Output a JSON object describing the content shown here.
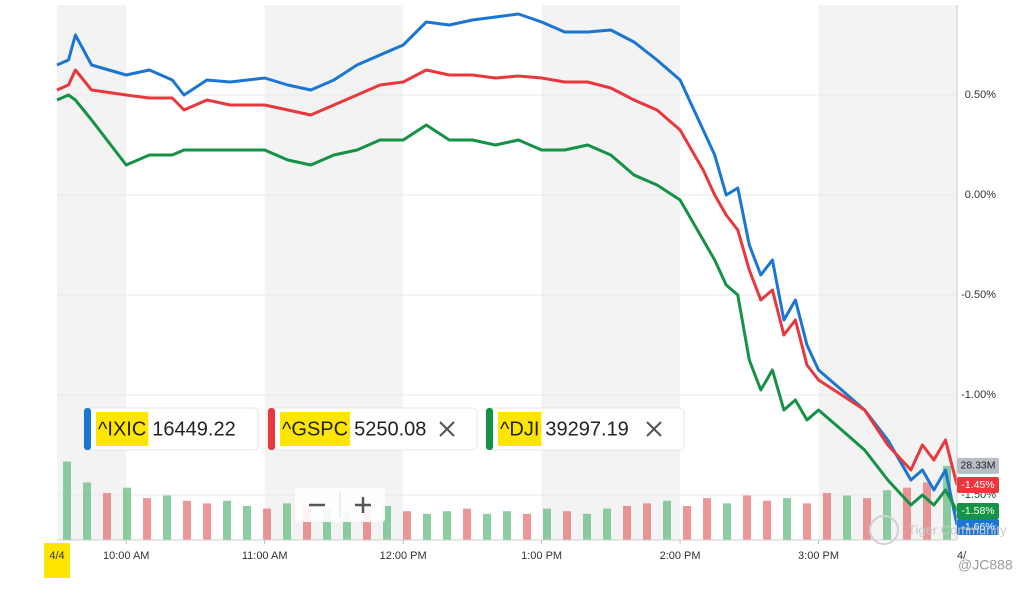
{
  "chart_data": {
    "type": "line",
    "x": [
      9.5,
      9.583,
      9.633,
      9.75,
      10,
      10.167,
      10.333,
      10.417,
      10.583,
      10.75,
      11,
      11.167,
      11.333,
      11.5,
      11.667,
      11.833,
      12,
      12.167,
      12.333,
      12.5,
      12.667,
      12.833,
      13,
      13.167,
      13.333,
      13.5,
      13.667,
      13.833,
      14,
      14.167,
      14.25,
      14.333,
      14.417,
      14.5,
      14.583,
      14.667,
      14.75,
      14.833,
      14.917,
      15,
      15.167,
      15.333,
      15.5,
      15.667,
      15.75,
      15.833,
      15.917,
      16
    ],
    "xlim": [
      9.5,
      16
    ],
    "xticks": [
      {
        "value": 10,
        "label": "10:00 AM"
      },
      {
        "value": 11,
        "label": "11:00 AM"
      },
      {
        "value": 12,
        "label": "12:00 PM"
      },
      {
        "value": 13,
        "label": "1:00 PM"
      },
      {
        "value": 14,
        "label": "2:00 PM"
      },
      {
        "value": 15,
        "label": "3:00 PM"
      }
    ],
    "ylim": [
      -1.725,
      0.95
    ],
    "yticks": [
      {
        "value": 0.5,
        "label": "0.50%"
      },
      {
        "value": 0,
        "label": "0.00%"
      },
      {
        "value": -0.5,
        "label": "-0.50%"
      },
      {
        "value": -1,
        "label": "-1.00%"
      },
      {
        "value": -1.5,
        "label": "-1.50%"
      }
    ],
    "grid": true,
    "series": [
      {
        "name": "^IXIC",
        "color": "#1a76d2",
        "price": 16449.22,
        "last": {
          "value": -1.66,
          "label": "-1.66%"
        },
        "values": [
          0.65,
          0.675,
          0.8,
          0.65,
          0.6,
          0.625,
          0.575,
          0.5,
          0.575,
          0.565,
          0.585,
          0.55,
          0.525,
          0.575,
          0.65,
          0.7,
          0.75,
          0.865,
          0.85,
          0.875,
          0.89,
          0.905,
          0.865,
          0.815,
          0.815,
          0.825,
          0.765,
          0.675,
          0.575,
          0.325,
          0.2,
          0,
          0.035,
          -0.25,
          -0.4,
          -0.325,
          -0.625,
          -0.525,
          -0.75,
          -0.875,
          -0.975,
          -1.075,
          -1.225,
          -1.425,
          -1.375,
          -1.475,
          -1.375,
          -1.65
        ]
      },
      {
        "name": "^GSPC",
        "color": "#e8383d",
        "price": 5250.08,
        "last": {
          "value": -1.45,
          "label": "-1.45%"
        },
        "values": [
          0.525,
          0.55,
          0.625,
          0.525,
          0.5,
          0.485,
          0.485,
          0.425,
          0.475,
          0.45,
          0.45,
          0.425,
          0.4,
          0.45,
          0.5,
          0.55,
          0.565,
          0.625,
          0.6,
          0.6,
          0.585,
          0.595,
          0.585,
          0.565,
          0.565,
          0.535,
          0.475,
          0.425,
          0.325,
          0.125,
          0,
          -0.1,
          -0.175,
          -0.375,
          -0.525,
          -0.475,
          -0.7,
          -0.625,
          -0.85,
          -0.925,
          -1,
          -1.075,
          -1.25,
          -1.375,
          -1.25,
          -1.325,
          -1.225,
          -1.45
        ]
      },
      {
        "name": "^DJI",
        "color": "#149245",
        "price": 39297.19,
        "last": {
          "value": -1.58,
          "label": "-1.58%"
        },
        "values": [
          0.475,
          0.5,
          0.475,
          0.375,
          0.15,
          0.2,
          0.2,
          0.225,
          0.225,
          0.225,
          0.225,
          0.175,
          0.15,
          0.2,
          0.225,
          0.275,
          0.275,
          0.35,
          0.275,
          0.275,
          0.25,
          0.275,
          0.225,
          0.225,
          0.25,
          0.2,
          0.1,
          0.05,
          -0.025,
          -0.225,
          -0.325,
          -0.45,
          -0.5,
          -0.825,
          -0.975,
          -0.875,
          -1.075,
          -1.025,
          -1.125,
          -1.075,
          -1.175,
          -1.275,
          -1.425,
          -1.55,
          -1.5,
          -1.55,
          -1.475,
          -1.58
        ]
      }
    ],
    "volume": {
      "ylim": [
        0,
        60
      ],
      "last": {
        "value": 28.33,
        "label": "28.33M"
      },
      "values": [
        30,
        22,
        18,
        20,
        16,
        17,
        15,
        14,
        15,
        13,
        12,
        14,
        13,
        12,
        11,
        12,
        13,
        11,
        10,
        11,
        12,
        10,
        11,
        10,
        12,
        11,
        10,
        12,
        13,
        14,
        15,
        13,
        16,
        14,
        17,
        15,
        16,
        14,
        18,
        17,
        16,
        19,
        20,
        22,
        28.33
      ],
      "colors": [
        "#5cb87a",
        "#5cb87a",
        "#e46b6b",
        "#5cb87a",
        "#e46b6b",
        "#5cb87a",
        "#e46b6b",
        "#e46b6b",
        "#5cb87a",
        "#5cb87a",
        "#e46b6b",
        "#5cb87a",
        "#e46b6b",
        "#5cb87a",
        "#5cb87a",
        "#e46b6b",
        "#5cb87a",
        "#e46b6b",
        "#5cb87a",
        "#5cb87a",
        "#e46b6b",
        "#5cb87a",
        "#5cb87a",
        "#e46b6b",
        "#5cb87a",
        "#e46b6b",
        "#5cb87a",
        "#5cb87a",
        "#e46b6b",
        "#e46b6b",
        "#5cb87a",
        "#e46b6b",
        "#e46b6b",
        "#5cb87a",
        "#e46b6b",
        "#e46b6b",
        "#5cb87a",
        "#e46b6b",
        "#e46b6b",
        "#5cb87a",
        "#e46b6b",
        "#5cb87a",
        "#e46b6b",
        "#e46b6b",
        "#5cb87a"
      ]
    },
    "date_labels": [
      {
        "value": 9.5,
        "label": "4/4"
      },
      {
        "value": 16,
        "label": "4/"
      }
    ],
    "watermarks": [
      "Tiger Community",
      "@JC888"
    ]
  }
}
